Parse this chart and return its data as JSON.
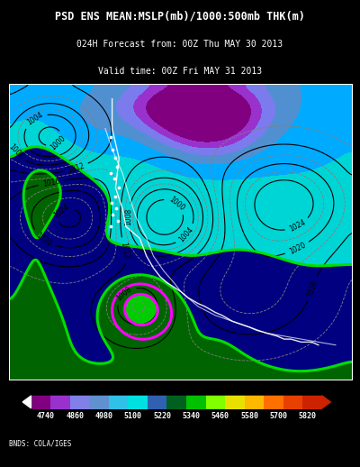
{
  "title_line1": "PSD ENS MEAN:MSLP(mb)/1000:500mb THK(m)",
  "title_line2": "024H Forecast from: 00Z Thu MAY 30 2013",
  "title_line3": "Valid time: 00Z Fri MAY 31 2013",
  "colorbar_levels": [
    "4740",
    "4860",
    "4980",
    "5100",
    "5220",
    "5340",
    "5460",
    "5580",
    "5700",
    "5820"
  ],
  "colorbar_colors": [
    "#8B008B",
    "#9B30FF",
    "#7B7BFF",
    "#6495ED",
    "#00BFFF",
    "#00E5E5",
    "#0000CD",
    "#006400",
    "#00C800",
    "#7CFC00",
    "#C8FF00",
    "#FFD700",
    "#FFA500",
    "#FF6600",
    "#CC2200"
  ],
  "background_color": "#000000",
  "text_color": "#ffffff",
  "credit_text": "BNDS: COLA/IGES",
  "fig_width": 4.0,
  "fig_height": 5.18
}
